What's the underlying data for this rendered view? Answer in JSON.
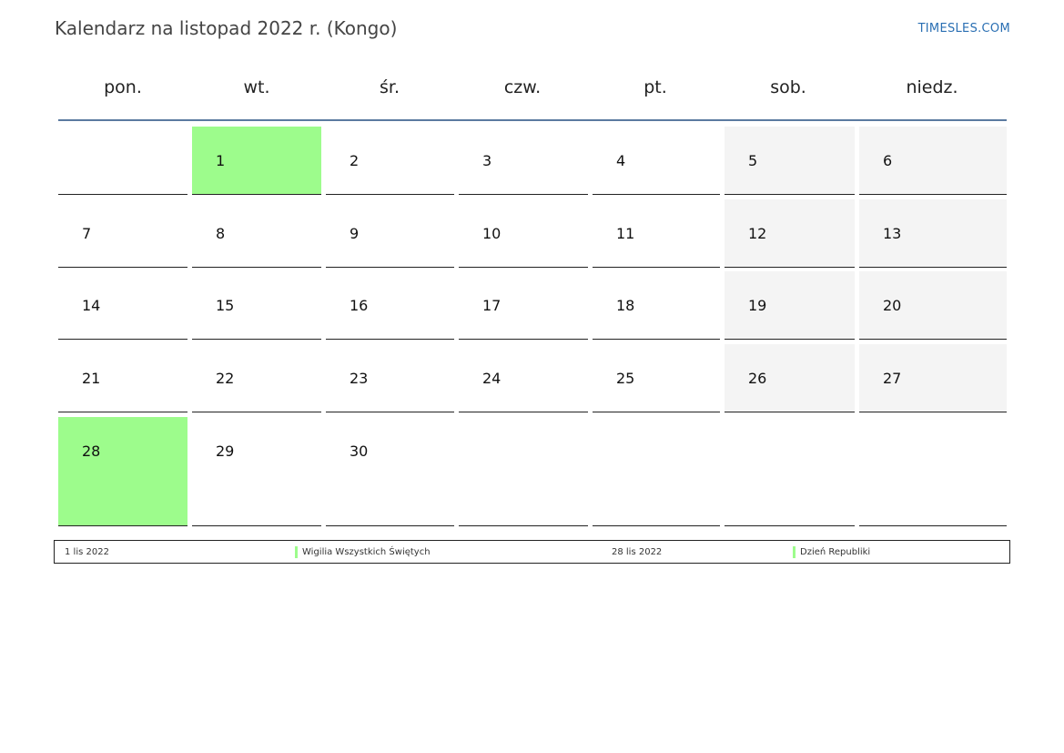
{
  "title": "Kalendarz na listopad 2022 r. (Kongo)",
  "brand": "TIMESLES.COM",
  "weekdays": [
    "pon.",
    "wt.",
    "śr.",
    "czw.",
    "pt.",
    "sob.",
    "niedz."
  ],
  "colors": {
    "holiday": "#9dfc8c",
    "weekend": "#f4f4f4",
    "header_line": "#5b7aa0",
    "brand": "#2a6fb3"
  },
  "weeks": [
    [
      "",
      "1",
      "2",
      "3",
      "4",
      "5",
      "6"
    ],
    [
      "7",
      "8",
      "9",
      "10",
      "11",
      "12",
      "13"
    ],
    [
      "14",
      "15",
      "16",
      "17",
      "18",
      "19",
      "20"
    ],
    [
      "21",
      "22",
      "23",
      "24",
      "25",
      "26",
      "27"
    ],
    [
      "28",
      "29",
      "30",
      "",
      "",
      "",
      ""
    ]
  ],
  "holidays": [
    {
      "date": "1 lis 2022",
      "name": "Wigilia Wszystkich Świętych",
      "day": "1"
    },
    {
      "date": "28 lis 2022",
      "name": "Dzień Republiki",
      "day": "28"
    }
  ]
}
